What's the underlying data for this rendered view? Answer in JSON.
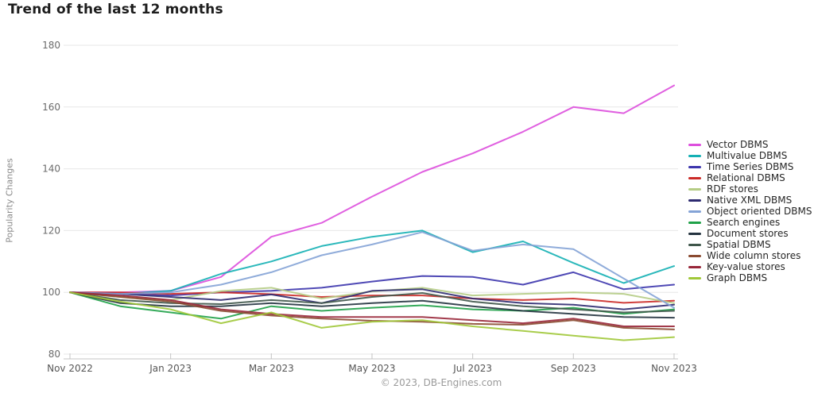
{
  "page": {
    "footer": "© 2023, DB-Engines.com"
  },
  "chart_data": {
    "type": "line",
    "title": "Trend of the last 12 months",
    "ylabel": "Popularity Changes",
    "xlabel": "",
    "ylim": [
      80,
      180
    ],
    "y_ticks": [
      80,
      100,
      120,
      140,
      160,
      180
    ],
    "grid": "horizontal",
    "legend_position": "right",
    "categories": [
      "Nov 2022",
      "Dec 2022",
      "Jan 2023",
      "Feb 2023",
      "Mar 2023",
      "Apr 2023",
      "May 2023",
      "Jun 2023",
      "Jul 2023",
      "Aug 2023",
      "Sep 2023",
      "Oct 2023",
      "Nov 2023"
    ],
    "x_tick_labels": [
      "Nov 2022",
      "Jan 2023",
      "Mar 2023",
      "May 2023",
      "Jul 2023",
      "Sep 2023",
      "Nov 2023"
    ],
    "series": [
      {
        "name": "Vector DBMS",
        "color": "#dd4fdd",
        "values": [
          100,
          100,
          100.5,
          105,
          118,
          122.5,
          131,
          139,
          145,
          152,
          160,
          158,
          167
        ]
      },
      {
        "name": "Multivalue DBMS",
        "color": "#14b0b4",
        "values": [
          100,
          99.5,
          100.5,
          106,
          110,
          115,
          118,
          120,
          113,
          116.5,
          109.5,
          103,
          108.5
        ]
      },
      {
        "name": "Time Series DBMS",
        "color": "#3c35ad",
        "values": [
          100,
          99.5,
          99,
          100,
          100.5,
          101.5,
          103.5,
          105.3,
          105,
          102.5,
          106.5,
          101,
          102.5
        ]
      },
      {
        "name": "Relational DBMS",
        "color": "#cb2a27",
        "values": [
          100,
          100,
          99.5,
          100,
          99.4,
          98.5,
          99,
          99,
          98,
          97.5,
          98,
          96.6,
          97.3
        ]
      },
      {
        "name": "RDF stores",
        "color": "#b5cc85",
        "values": [
          100,
          98.5,
          97.5,
          100.4,
          101.5,
          98,
          100.3,
          101.5,
          99,
          99.5,
          100,
          99.5,
          96.5
        ]
      },
      {
        "name": "Native XML DBMS",
        "color": "#2d2a70",
        "values": [
          100,
          99.5,
          98.5,
          97.5,
          99.3,
          96.5,
          100.5,
          101,
          98,
          96.5,
          96,
          94.5,
          96
        ]
      },
      {
        "name": "Object oriented DBMS",
        "color": "#84a3d6",
        "values": [
          100,
          99.5,
          100,
          102.5,
          106.5,
          112,
          115.5,
          119.5,
          113.5,
          115.5,
          114,
          104.5,
          95
        ]
      },
      {
        "name": "Search engines",
        "color": "#1fa148",
        "values": [
          100,
          95.5,
          93.5,
          91.5,
          95.5,
          94,
          95,
          95.8,
          94.5,
          94,
          95,
          93,
          94.5
        ]
      },
      {
        "name": "Document stores",
        "color": "#24333f",
        "values": [
          100,
          96.5,
          95.5,
          95.5,
          96.5,
          95.5,
          96.5,
          97.3,
          95.5,
          94,
          93,
          92,
          91.8
        ]
      },
      {
        "name": "Spatial DBMS",
        "color": "#3f564a",
        "values": [
          100,
          97.5,
          96.5,
          96.2,
          97.5,
          96.5,
          98.5,
          99.8,
          97,
          95.5,
          94.5,
          93.5,
          94
        ]
      },
      {
        "name": "Wide column stores",
        "color": "#8a4a30",
        "values": [
          100,
          98.5,
          97,
          94,
          92.5,
          91.5,
          90.8,
          90.5,
          89.8,
          89.5,
          91,
          88.5,
          88
        ]
      },
      {
        "name": "Key-value stores",
        "color": "#982639",
        "values": [
          100,
          99,
          97.5,
          94.5,
          93,
          92,
          92,
          92,
          91,
          90,
          91.5,
          89,
          89
        ]
      },
      {
        "name": "Graph DBMS",
        "color": "#a0c838",
        "values": [
          100,
          97,
          94.5,
          90,
          93.5,
          88.5,
          90.5,
          91,
          89,
          87.5,
          86,
          84.5,
          85.5
        ]
      }
    ]
  }
}
